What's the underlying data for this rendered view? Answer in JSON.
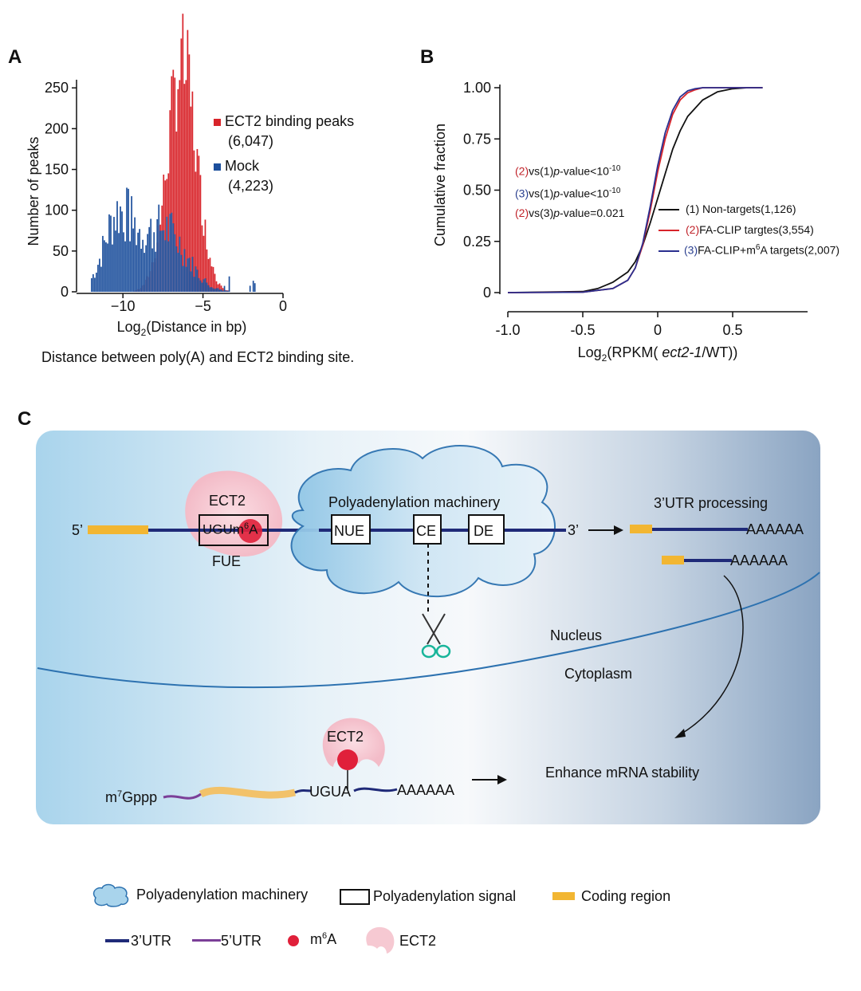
{
  "panels": {
    "a": {
      "letter": "A",
      "caption": "Distance between poly(A) and ECT2 binding site.",
      "legend": [
        {
          "label": "ECT2 binding peaks",
          "count": "(6,047)",
          "color": "#d8242a"
        },
        {
          "label": "Mock",
          "count": "(4,223)",
          "color": "#1c4f9c"
        }
      ]
    },
    "b": {
      "letter": "B",
      "stats": [
        {
          "prefix": "(2)",
          "text": "vs(1)",
          "p": "p",
          "rest": "-value<10",
          "sup": "-10",
          "color": "#c0232a"
        },
        {
          "prefix": "(3)",
          "text": "vs(1)",
          "p": "p",
          "rest": "-value<10",
          "sup": "-10",
          "color": "#2a3f8f"
        },
        {
          "prefix": "(2)",
          "text": "vs(3)",
          "p": "p",
          "rest": "-value=0.021",
          "sup": "",
          "color": "#c0232a"
        }
      ],
      "legend": [
        {
          "num": "(1)",
          "label": " Non-targets(1,126)",
          "color": "#111111",
          "numColor": "#111111"
        },
        {
          "num": "(2)",
          "label": "FA-CLIP targtes(3,554)",
          "color": "#d8242a",
          "numColor": "#c0232a"
        },
        {
          "num": "(3)",
          "label": "FA-CLIP+m",
          "sup": "6",
          "label2": "A targets(2,007)",
          "color": "#2a2f8f",
          "numColor": "#2a3f8f"
        }
      ]
    },
    "c": {
      "letter": "C",
      "ect2_top": "ECT2",
      "five_prime": "5’",
      "three_prime": "3’",
      "ugu": "UGU",
      "m6a_m": "m",
      "m6a_sup": "6",
      "m6a_a": "A",
      "fue": "FUE",
      "machinery_label": "Polyadenylation machinery",
      "boxes": [
        "NUE",
        "CE",
        "DE"
      ],
      "utr_processing": "3’UTR processing",
      "polya_1": "AAAAAA",
      "polya_2": "AAAAAA",
      "nucleus": "Nucleus",
      "cytoplasm": "Cytoplasm",
      "ect2_bottom": "ECT2",
      "cap_m": "m",
      "cap_sup": "7",
      "cap_rest": "Gppp",
      "ugua": "UGUA",
      "polya_3": "AAAAAA",
      "enhance": "Enhance mRNA stability"
    },
    "legend": {
      "machinery": "Polyadenylation machinery",
      "signal": "Polyadenylation signal",
      "coding": "Coding region",
      "utr3": "3’UTR",
      "utr5": "5’UTR",
      "m6a_m": "m",
      "m6a_sup": "6",
      "m6a_a": "A",
      "ect2": "ECT2"
    }
  },
  "colors": {
    "red": "#d8242a",
    "blue": "#1c4f9c",
    "navy": "#1f2a78",
    "purple": "#7b3f98",
    "orange": "#f2b632",
    "pink": "#f6c9d2",
    "m6a_red": "#e0203a"
  },
  "chart_data": [
    {
      "type": "bar",
      "panel": "A",
      "xlabel": "Log2(Distance in bp)",
      "ylabel": "Number of peaks",
      "xlim": [
        -12.5,
        0
      ],
      "ylim": [
        0,
        260
      ],
      "xticks": [
        -10,
        -5,
        0
      ],
      "xtick_labels": [
        "−10",
        "−5",
        "0"
      ],
      "yticks": [
        0,
        50,
        100,
        150,
        200,
        250
      ],
      "bin_width": 0.1,
      "series": [
        {
          "name": "ECT2 binding peaks",
          "color": "#d8242a",
          "center": -6.3,
          "sd": 0.9,
          "peak": 278
        },
        {
          "name": "Mock",
          "color": "#1c4f9c",
          "components": [
            {
              "center": -10.3,
              "sd": 0.9,
              "peak": 88
            },
            {
              "center": -7.5,
              "sd": 1.4,
              "peak": 78
            }
          ]
        }
      ]
    },
    {
      "type": "line",
      "panel": "B",
      "xlabel": "Log2(RPKM( ect2-1/WT))",
      "ylabel": "Cumulative fraction",
      "xlim": [
        -1.0,
        1.0
      ],
      "ylim": [
        0,
        1
      ],
      "xticks": [
        -1.0,
        -0.5,
        0,
        0.5
      ],
      "xtick_labels": [
        "-1.0",
        "-0.5",
        "0",
        "0.5"
      ],
      "yticks": [
        0,
        0.25,
        0.5,
        0.75,
        1.0
      ],
      "ytick_labels": [
        "0",
        "0.25",
        "0.50",
        "0.75",
        "1.00"
      ],
      "series": [
        {
          "name": "(1) Non-targets(1,126)",
          "color": "#111111",
          "x": [
            -1.0,
            -0.5,
            -0.4,
            -0.3,
            -0.2,
            -0.15,
            -0.1,
            -0.05,
            0,
            0.05,
            0.1,
            0.15,
            0.2,
            0.3,
            0.4,
            0.5,
            0.6,
            0.7
          ],
          "y": [
            0,
            0.005,
            0.02,
            0.05,
            0.1,
            0.15,
            0.23,
            0.34,
            0.46,
            0.58,
            0.7,
            0.79,
            0.86,
            0.94,
            0.98,
            0.995,
            1.0,
            1.0
          ]
        },
        {
          "name": "(2) FA-CLIP targtes(3,554)",
          "color": "#d8242a",
          "x": [
            -1.0,
            -0.5,
            -0.3,
            -0.2,
            -0.15,
            -0.1,
            -0.05,
            0,
            0.05,
            0.1,
            0.15,
            0.2,
            0.25,
            0.3,
            0.4,
            0.55,
            0.7
          ],
          "y": [
            0,
            0.002,
            0.02,
            0.06,
            0.12,
            0.23,
            0.4,
            0.59,
            0.75,
            0.87,
            0.94,
            0.975,
            0.99,
            1.0,
            1.0,
            1.0,
            1.0
          ]
        },
        {
          "name": "(3) FA-CLIP+m6A targets(2,007)",
          "color": "#2a2f8f",
          "x": [
            -1.0,
            -0.5,
            -0.3,
            -0.2,
            -0.15,
            -0.1,
            -0.05,
            0,
            0.05,
            0.1,
            0.15,
            0.2,
            0.25,
            0.3,
            0.4,
            0.55,
            0.7
          ],
          "y": [
            0,
            0.002,
            0.02,
            0.06,
            0.12,
            0.24,
            0.42,
            0.62,
            0.78,
            0.89,
            0.955,
            0.985,
            0.995,
            1.0,
            1.0,
            1.0,
            1.0
          ]
        }
      ]
    }
  ]
}
